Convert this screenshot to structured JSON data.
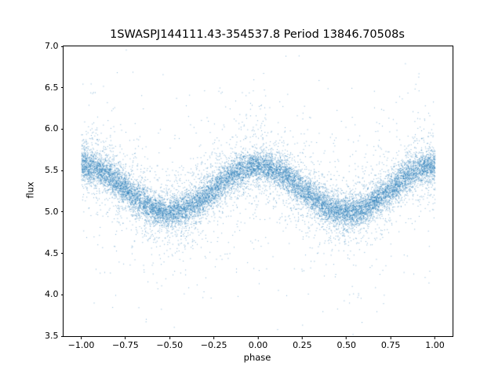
{
  "chart_data": {
    "type": "scatter",
    "title": "1SWASPJ144111.43-354537.8 Period 13846.70508s",
    "xlabel": "phase",
    "ylabel": "flux",
    "xlim": [
      -1.1,
      1.1
    ],
    "ylim": [
      3.5,
      7.0
    ],
    "grid": false,
    "legend": "none",
    "xticks": [
      -1.0,
      -0.75,
      -0.5,
      -0.25,
      0.0,
      0.25,
      0.5,
      0.75,
      1.0
    ],
    "xtick_labels": [
      "−1.00",
      "−0.75",
      "−0.50",
      "−0.25",
      "0.00",
      "0.25",
      "0.50",
      "0.75",
      "1.00"
    ],
    "yticks": [
      3.5,
      4.0,
      4.5,
      5.0,
      5.5,
      6.0,
      6.5,
      7.0
    ],
    "ytick_labels": [
      "3.5",
      "4.0",
      "4.5",
      "5.0",
      "5.5",
      "6.0",
      "6.5",
      "7.0"
    ],
    "marker_color": "#1f77b4",
    "marker_alpha": 0.55,
    "marker_size_px": 1,
    "series_model": {
      "kind": "phase_folded_sinusoid",
      "description": "Dense scatter of a phase-folded light curve: flux = mean_flux + amplitude * cos(2*pi*phase) + noise; peaks (~5.56) at phase 0 and +/-1, troughs (~5.0) at phase +/-0.5",
      "phase_range": [
        -1.0,
        1.0
      ],
      "mean_flux": 5.28,
      "amplitude": 0.28,
      "n_points": 16000,
      "noise_mixture": [
        {
          "fraction": 0.72,
          "sigma": 0.09
        },
        {
          "fraction": 0.2,
          "sigma": 0.22
        },
        {
          "fraction": 0.06,
          "sigma": 0.45
        },
        {
          "fraction": 0.02,
          "sigma": 0.85
        }
      ],
      "seed": 1441
    }
  }
}
